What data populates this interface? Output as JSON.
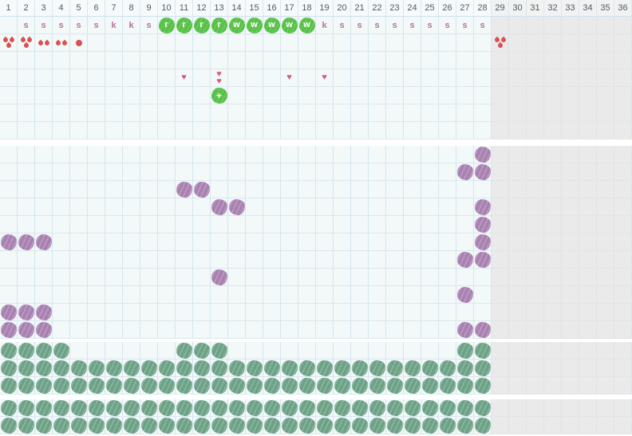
{
  "header": {
    "labels": [
      "1",
      "2",
      "3",
      "4",
      "5",
      "6",
      "7",
      "8",
      "9",
      "10",
      "11",
      "12",
      "13",
      "14",
      "15",
      "16",
      "17",
      "18",
      "19",
      "20",
      "21",
      "22",
      "23",
      "24",
      "25",
      "26",
      "27",
      "28",
      "29",
      "30",
      "31",
      "32",
      "33",
      "34",
      "35",
      "36"
    ]
  },
  "icons": {
    "heart": "♥",
    "plus": "+"
  },
  "colors": {
    "cell_bg": "#f3f8f9",
    "grid_line": "#d5e6ee",
    "gray_bg": "#eaeaeb",
    "highlight_green": "#58c148",
    "sage_green": "#6da287",
    "purple": "#a981b1",
    "drop_red": "#da5151",
    "heart_pink": "#da5c7b",
    "letter_pink": "#bb6f9f",
    "header_text": "#4d5c66",
    "separator": "#ffffff"
  },
  "grid": {
    "num_columns": 36,
    "gray_start_column": 29,
    "sections": [
      {
        "name": "top",
        "rows": [
          {
            "items": [
              {
                "kind": "letter",
                "col": 2,
                "char": "s"
              },
              {
                "kind": "letter",
                "col": 3,
                "char": "s"
              },
              {
                "kind": "letter",
                "col": 4,
                "char": "s"
              },
              {
                "kind": "letter",
                "col": 5,
                "char": "s"
              },
              {
                "kind": "letter",
                "col": 6,
                "char": "s"
              },
              {
                "kind": "letter",
                "col": 7,
                "char": "k"
              },
              {
                "kind": "letter",
                "col": 8,
                "char": "k"
              },
              {
                "kind": "letter",
                "col": 9,
                "char": "s"
              },
              {
                "kind": "letter-green",
                "col": 10,
                "char": "r"
              },
              {
                "kind": "letter-green",
                "col": 11,
                "char": "r"
              },
              {
                "kind": "letter-green",
                "col": 12,
                "char": "r"
              },
              {
                "kind": "letter-green",
                "col": 13,
                "char": "r"
              },
              {
                "kind": "letter-green",
                "col": 14,
                "char": "w"
              },
              {
                "kind": "letter-green",
                "col": 15,
                "char": "w"
              },
              {
                "kind": "letter-green",
                "col": 16,
                "char": "w"
              },
              {
                "kind": "letter-green",
                "col": 17,
                "char": "w"
              },
              {
                "kind": "letter-green",
                "col": 18,
                "char": "w"
              },
              {
                "kind": "letter",
                "col": 19,
                "char": "k"
              },
              {
                "kind": "letter",
                "col": 20,
                "char": "s"
              },
              {
                "kind": "letter",
                "col": 21,
                "char": "s"
              },
              {
                "kind": "letter",
                "col": 22,
                "char": "s"
              },
              {
                "kind": "letter",
                "col": 23,
                "char": "s"
              },
              {
                "kind": "letter",
                "col": 24,
                "char": "s"
              },
              {
                "kind": "letter",
                "col": 25,
                "char": "s"
              },
              {
                "kind": "letter",
                "col": 26,
                "char": "s"
              },
              {
                "kind": "letter",
                "col": 27,
                "char": "s"
              },
              {
                "kind": "letter",
                "col": 28,
                "char": "s"
              }
            ]
          },
          {
            "items": [
              {
                "kind": "drops",
                "col": 1,
                "count": 3
              },
              {
                "kind": "drops",
                "col": 2,
                "count": 3
              },
              {
                "kind": "drops",
                "col": 3,
                "count": 2
              },
              {
                "kind": "drops",
                "col": 4,
                "count": 2
              },
              {
                "kind": "drops",
                "col": 5,
                "count": 1
              },
              {
                "kind": "drops",
                "col": 29,
                "count": 3
              }
            ]
          },
          {
            "items": []
          },
          {
            "items": [
              {
                "kind": "hearts",
                "col": 11,
                "count": 1
              },
              {
                "kind": "hearts",
                "col": 13,
                "count": 2
              },
              {
                "kind": "hearts",
                "col": 17,
                "count": 1
              },
              {
                "kind": "hearts",
                "col": 19,
                "count": 1
              }
            ]
          },
          {
            "items": [
              {
                "kind": "plus",
                "col": 13
              }
            ]
          },
          {
            "items": []
          },
          {
            "items": []
          }
        ]
      },
      {
        "name": "middle",
        "rows": [
          {
            "items": [
              {
                "kind": "purple",
                "cols": [
                  28
                ]
              }
            ]
          },
          {
            "items": [
              {
                "kind": "purple",
                "cols": [
                  27,
                  28
                ]
              }
            ]
          },
          {
            "items": [
              {
                "kind": "purple",
                "cols": [
                  11,
                  12
                ]
              }
            ]
          },
          {
            "items": [
              {
                "kind": "purple",
                "cols": [
                  13,
                  14,
                  28
                ]
              }
            ]
          },
          {
            "items": [
              {
                "kind": "purple",
                "cols": [
                  28
                ]
              }
            ]
          },
          {
            "items": [
              {
                "kind": "purple",
                "cols": [
                  1,
                  2,
                  3,
                  28
                ]
              }
            ]
          },
          {
            "items": [
              {
                "kind": "purple",
                "cols": [
                  27,
                  28
                ]
              }
            ]
          },
          {
            "items": [
              {
                "kind": "purple",
                "cols": [
                  13
                ]
              }
            ]
          },
          {
            "items": [
              {
                "kind": "purple",
                "cols": [
                  27
                ]
              }
            ]
          },
          {
            "items": [
              {
                "kind": "purple",
                "cols": [
                  1,
                  2,
                  3
                ]
              }
            ]
          },
          {
            "items": [
              {
                "kind": "purple",
                "cols": [
                  1,
                  2,
                  3,
                  27,
                  28
                ]
              }
            ]
          }
        ]
      },
      {
        "name": "lower-a",
        "rows": [
          {
            "items": [
              {
                "kind": "green",
                "cols": [
                  1,
                  2,
                  3,
                  4,
                  11,
                  12,
                  13,
                  27,
                  28
                ]
              }
            ]
          },
          {
            "items": [
              {
                "kind": "green",
                "range": [
                  1,
                  28
                ]
              }
            ]
          },
          {
            "items": [
              {
                "kind": "green",
                "range": [
                  1,
                  28
                ]
              }
            ]
          }
        ]
      },
      {
        "name": "lower-b",
        "rows": [
          {
            "items": [
              {
                "kind": "green",
                "range": [
                  1,
                  28
                ]
              }
            ]
          },
          {
            "items": [
              {
                "kind": "green",
                "range": [
                  1,
                  28
                ]
              }
            ]
          }
        ]
      }
    ]
  }
}
